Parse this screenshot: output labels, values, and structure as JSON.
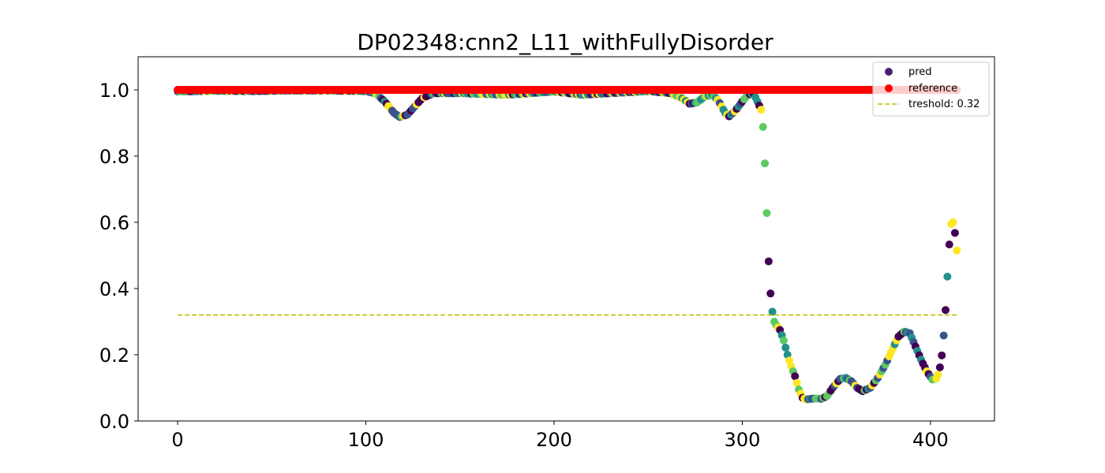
{
  "chart_data": {
    "type": "scatter",
    "title": "DP02348:cnn2_L11_withFullyDisorder",
    "xlabel": "",
    "ylabel": "",
    "xlim": [
      -21,
      434
    ],
    "ylim": [
      0.0,
      1.1
    ],
    "x_ticks": [
      0,
      100,
      200,
      300,
      400
    ],
    "y_ticks": [
      0.0,
      0.2,
      0.4,
      0.6,
      0.8,
      1.0
    ],
    "x_tick_labels": [
      "0",
      "100",
      "200",
      "300",
      "400"
    ],
    "y_tick_labels": [
      "0.0",
      "0.2",
      "0.4",
      "0.6",
      "0.8",
      "1.0"
    ],
    "grid": false,
    "legend_position": "top-right",
    "legend": {
      "pred": "pred",
      "reference": "reference",
      "threshold": "treshold: 0.32"
    },
    "colors": {
      "reference": "#ff0000",
      "threshold": "#bfbf00",
      "pred_legend": "#4b1f6f",
      "viridis": [
        "#440154",
        "#3b528b",
        "#21918c",
        "#5ec962",
        "#fde725"
      ]
    },
    "threshold": 0.32,
    "x_max": 414,
    "reference_value": 1.0,
    "pred_anchors": [
      [
        0,
        0.995
      ],
      [
        20,
        0.997
      ],
      [
        40,
        0.996
      ],
      [
        60,
        0.998
      ],
      [
        80,
        0.998
      ],
      [
        100,
        0.996
      ],
      [
        105,
        0.99
      ],
      [
        110,
        0.965
      ],
      [
        115,
        0.93
      ],
      [
        118,
        0.918
      ],
      [
        122,
        0.925
      ],
      [
        126,
        0.95
      ],
      [
        130,
        0.975
      ],
      [
        136,
        0.99
      ],
      [
        150,
        0.99
      ],
      [
        175,
        0.985
      ],
      [
        200,
        0.995
      ],
      [
        215,
        0.985
      ],
      [
        230,
        0.99
      ],
      [
        250,
        0.996
      ],
      [
        262,
        0.99
      ],
      [
        268,
        0.975
      ],
      [
        272,
        0.958
      ],
      [
        276,
        0.962
      ],
      [
        280,
        0.98
      ],
      [
        284,
        0.985
      ],
      [
        287,
        0.97
      ],
      [
        289,
        0.95
      ],
      [
        291,
        0.93
      ],
      [
        293,
        0.92
      ],
      [
        296,
        0.935
      ],
      [
        300,
        0.965
      ],
      [
        303,
        0.985
      ],
      [
        306,
        0.99
      ],
      [
        308,
        0.965
      ],
      [
        310,
        0.94
      ],
      [
        311,
        0.888
      ],
      [
        312,
        0.778
      ],
      [
        313,
        0.628
      ],
      [
        314,
        0.482
      ],
      [
        315,
        0.385
      ],
      [
        316,
        0.33
      ],
      [
        317,
        0.3
      ],
      [
        318,
        0.29
      ],
      [
        320,
        0.275
      ],
      [
        322,
        0.243
      ],
      [
        324,
        0.2
      ],
      [
        326,
        0.165
      ],
      [
        328,
        0.135
      ],
      [
        330,
        0.095
      ],
      [
        332,
        0.07
      ],
      [
        334,
        0.065
      ],
      [
        338,
        0.068
      ],
      [
        342,
        0.067
      ],
      [
        345,
        0.075
      ],
      [
        348,
        0.1
      ],
      [
        352,
        0.127
      ],
      [
        355,
        0.13
      ],
      [
        358,
        0.12
      ],
      [
        361,
        0.1
      ],
      [
        364,
        0.09
      ],
      [
        368,
        0.1
      ],
      [
        372,
        0.13
      ],
      [
        376,
        0.17
      ],
      [
        380,
        0.22
      ],
      [
        383,
        0.255
      ],
      [
        386,
        0.27
      ],
      [
        389,
        0.265
      ],
      [
        392,
        0.225
      ],
      [
        395,
        0.185
      ],
      [
        398,
        0.15
      ],
      [
        401,
        0.125
      ],
      [
        403,
        0.128
      ],
      [
        404,
        0.14
      ],
      [
        405,
        0.162
      ],
      [
        406,
        0.198
      ],
      [
        407,
        0.258
      ],
      [
        408,
        0.335
      ],
      [
        409,
        0.436
      ],
      [
        410,
        0.533
      ],
      [
        411,
        0.595
      ],
      [
        412,
        0.6
      ],
      [
        413,
        0.568
      ],
      [
        414,
        0.515
      ]
    ]
  }
}
